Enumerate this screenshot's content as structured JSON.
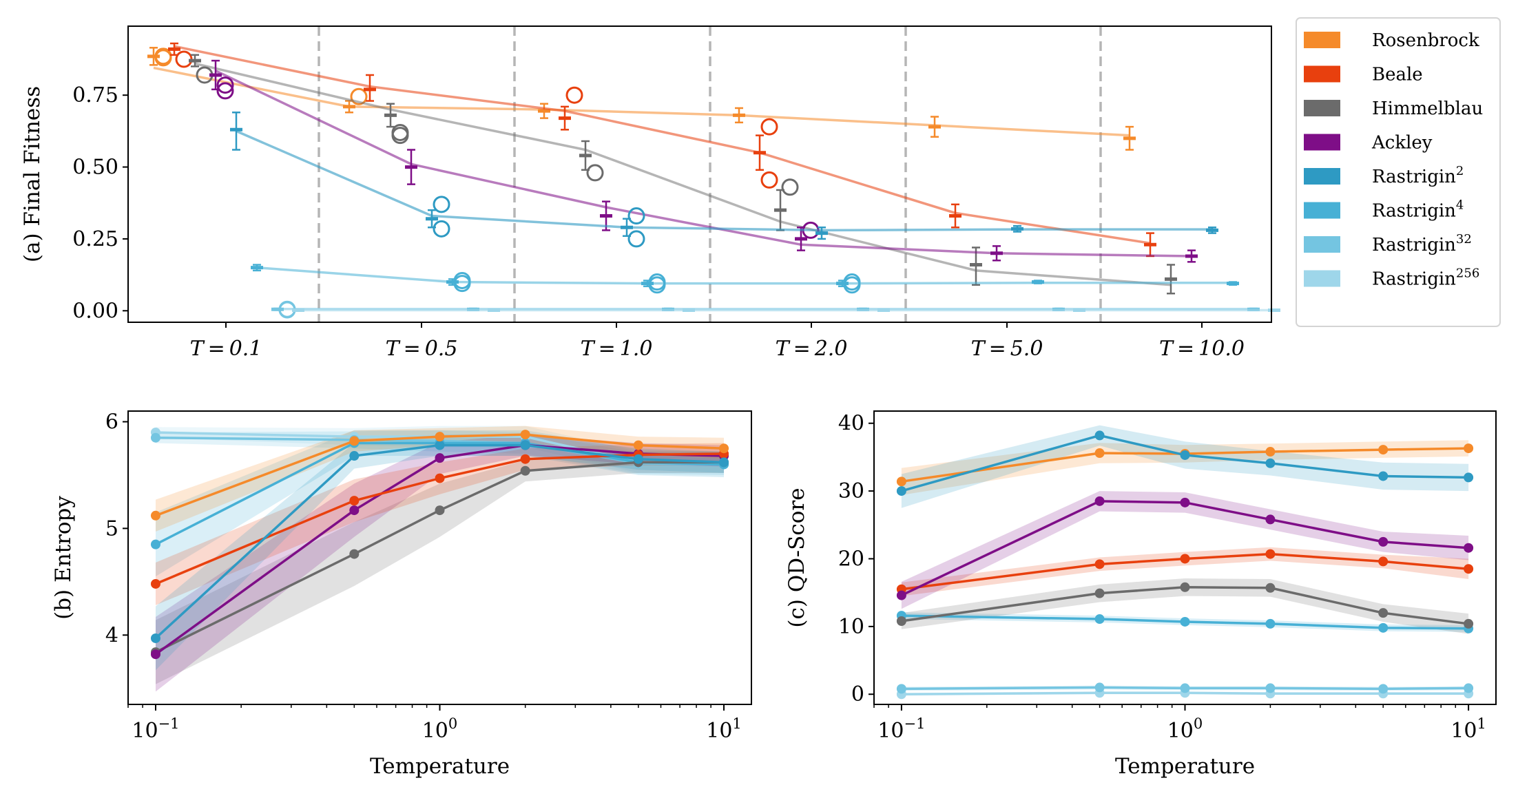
{
  "chart_data": [
    {
      "type": "scatter",
      "panel": "a",
      "ylabel": "(a) Final Fitness",
      "categories": [
        "T = 0.1",
        "T = 0.5",
        "T = 1.0",
        "T = 2.0",
        "T = 5.0",
        "T = 10.0"
      ],
      "ylim": [
        -0.04,
        0.99
      ],
      "yticks": [
        "0.00",
        "0.25",
        "0.50",
        "0.75"
      ],
      "grid": false,
      "legend_position": "outside-right",
      "series": [
        {
          "name": "Rosenbrock",
          "label": "Rosenbrock",
          "sup": "",
          "color": "#F58A2A",
          "line_alpha": 0.55,
          "means": [
            0.885,
            0.71,
            0.695,
            0.68,
            0.64,
            0.6
          ],
          "err_low": [
            0.03,
            0.02,
            0.025,
            0.025,
            0.035,
            0.04
          ],
          "err_high": [
            0.03,
            0.02,
            0.025,
            0.025,
            0.035,
            0.04
          ],
          "circles": [
            [
              0.885,
              0.88,
              0.885
            ],
            [
              0.745
            ],
            [],
            [],
            [],
            []
          ],
          "line": [
            0.845,
            0.71,
            0.7,
            0.68,
            0.645,
            0.61
          ]
        },
        {
          "name": "Beale",
          "label": "Beale",
          "sup": "",
          "color": "#E8400E",
          "line_alpha": 0.55,
          "means": [
            0.91,
            0.77,
            0.67,
            0.55,
            0.33,
            0.23
          ],
          "err_low": [
            0.02,
            0.04,
            0.04,
            0.06,
            0.04,
            0.04
          ],
          "err_high": [
            0.02,
            0.05,
            0.04,
            0.06,
            0.04,
            0.04
          ],
          "circles": [
            [
              0.875
            ],
            [],
            [
              0.75
            ],
            [
              0.64,
              0.455
            ],
            [],
            []
          ],
          "line": [
            0.92,
            0.78,
            0.695,
            0.55,
            0.34,
            0.235
          ]
        },
        {
          "name": "Himmelblau",
          "label": "Himmelblau",
          "sup": "",
          "color": "#6B6B6B",
          "line_alpha": 0.5,
          "means": [
            0.87,
            0.68,
            0.54,
            0.35,
            0.16,
            0.11
          ],
          "err_low": [
            0.02,
            0.04,
            0.05,
            0.07,
            0.07,
            0.05
          ],
          "err_high": [
            0.02,
            0.04,
            0.05,
            0.07,
            0.06,
            0.05
          ],
          "circles": [
            [
              0.82
            ],
            [
              0.62,
              0.61
            ],
            [
              0.48
            ],
            [
              0.43
            ],
            [],
            []
          ],
          "line": [
            0.86,
            0.7,
            0.56,
            0.31,
            0.14,
            0.09
          ]
        },
        {
          "name": "Ackley",
          "label": "Ackley",
          "sup": "",
          "color": "#7E0E87",
          "line_alpha": 0.55,
          "means": [
            0.82,
            0.5,
            0.33,
            0.25,
            0.2,
            0.19
          ],
          "err_low": [
            0.05,
            0.06,
            0.05,
            0.04,
            0.025,
            0.02
          ],
          "err_high": [
            0.05,
            0.06,
            0.05,
            0.04,
            0.025,
            0.02
          ],
          "circles": [
            [
              0.785,
              0.765
            ],
            [],
            [],
            [
              0.28
            ],
            [],
            []
          ],
          "line": [
            0.835,
            0.51,
            0.36,
            0.23,
            0.2,
            0.19
          ]
        },
        {
          "name": "Rastrigin^2",
          "label": "Rastrigin",
          "sup": "2",
          "color": "#2E9AC3",
          "line_alpha": 0.6,
          "means": [
            0.63,
            0.32,
            0.29,
            0.27,
            0.285,
            0.28
          ],
          "err_low": [
            0.07,
            0.03,
            0.03,
            0.02,
            0.01,
            0.01
          ],
          "err_high": [
            0.06,
            0.03,
            0.03,
            0.02,
            0.01,
            0.01
          ],
          "circles": [
            [],
            [
              0.37,
              0.285
            ],
            [
              0.33,
              0.25
            ],
            [],
            [],
            []
          ],
          "line": [
            0.625,
            0.33,
            0.29,
            0.28,
            0.283,
            0.283
          ]
        },
        {
          "name": "Rastrigin^4",
          "label": "Rastrigin",
          "sup": "4",
          "color": "#47B0D5",
          "line_alpha": 0.55,
          "means": [
            0.15,
            0.1,
            0.095,
            0.095,
            0.1,
            0.095
          ],
          "err_low": [
            0.01,
            0.01,
            0.01,
            0.01,
            0.005,
            0.005
          ],
          "err_high": [
            0.01,
            0.01,
            0.01,
            0.01,
            0.005,
            0.005
          ],
          "circles": [
            [],
            [
              0.105,
              0.095
            ],
            [
              0.1,
              0.09
            ],
            [
              0.1,
              0.09
            ],
            [],
            []
          ],
          "line": [
            0.15,
            0.1,
            0.095,
            0.095,
            0.097,
            0.097
          ]
        },
        {
          "name": "Rastrigin^32",
          "label": "Rastrigin",
          "sup": "32",
          "color": "#74C5E1",
          "line_alpha": 0.55,
          "means": [
            0.005,
            0.005,
            0.005,
            0.005,
            0.005,
            0.005
          ],
          "err_low": [
            0.003,
            0.003,
            0.003,
            0.003,
            0.003,
            0.003
          ],
          "err_high": [
            0.003,
            0.003,
            0.003,
            0.003,
            0.003,
            0.003
          ],
          "circles": [
            [
              0.005,
              0.003
            ],
            [],
            [],
            [],
            [],
            []
          ],
          "line": [
            0.006,
            0.006,
            0.006,
            0.006,
            0.006,
            0.006
          ]
        },
        {
          "name": "Rastrigin^256",
          "label": "Rastrigin",
          "sup": "256",
          "color": "#9ED6EA",
          "line_alpha": 0.55,
          "means": [
            0.002,
            0.002,
            0.002,
            0.002,
            0.002,
            0.002
          ],
          "err_low": [
            0.002,
            0.002,
            0.002,
            0.002,
            0.002,
            0.002
          ],
          "err_high": [
            0.002,
            0.002,
            0.002,
            0.002,
            0.002,
            0.002
          ],
          "circles": [
            [],
            [],
            [],
            [],
            [],
            []
          ],
          "line": [
            0.002,
            0.002,
            0.002,
            0.002,
            0.002,
            0.002
          ]
        }
      ]
    },
    {
      "type": "line",
      "panel": "b",
      "ylabel": "(b) Entropy",
      "xlabel": "Temperature",
      "x": [
        0.1,
        0.5,
        1,
        2,
        5,
        10
      ],
      "x_scale": "log",
      "xlim": [
        0.08,
        12.5
      ],
      "ylim": [
        3.35,
        6.1
      ],
      "yticks": [
        4,
        5,
        6
      ],
      "xticks": [
        {
          "base": "10",
          "exp": "−1"
        },
        {
          "base": "10",
          "exp": "0"
        },
        {
          "base": "10",
          "exp": "1"
        }
      ],
      "band_alpha": 0.2,
      "series": [
        {
          "name": "Rastrigin^256",
          "color": "#9ED6EA",
          "values": [
            5.9,
            5.86,
            5.86,
            5.86,
            5.62,
            5.62
          ],
          "band": [
            0.05,
            0.08,
            0.1,
            0.1,
            0.1,
            0.1
          ]
        },
        {
          "name": "Rastrigin^32",
          "color": "#74C5E1",
          "values": [
            5.85,
            5.83,
            5.82,
            5.8,
            5.61,
            5.6
          ],
          "band": [
            0.05,
            0.08,
            0.1,
            0.1,
            0.1,
            0.1
          ]
        },
        {
          "name": "Rastrigin^4",
          "color": "#47B0D5",
          "values": [
            4.85,
            5.8,
            5.8,
            5.8,
            5.62,
            5.6
          ],
          "band": [
            0.3,
            0.12,
            0.12,
            0.12,
            0.12,
            0.12
          ]
        },
        {
          "name": "Himmelblau",
          "color": "#6B6B6B",
          "values": [
            3.84,
            4.76,
            5.17,
            5.54,
            5.62,
            5.62
          ],
          "band": [
            0.3,
            0.3,
            0.25,
            0.1,
            0.1,
            0.1
          ]
        },
        {
          "name": "Ackley",
          "color": "#7E0E87",
          "values": [
            3.82,
            5.17,
            5.66,
            5.78,
            5.7,
            5.68
          ],
          "band": [
            0.35,
            0.25,
            0.15,
            0.1,
            0.1,
            0.1
          ]
        },
        {
          "name": "Beale",
          "color": "#E8400E",
          "values": [
            4.48,
            5.26,
            5.47,
            5.65,
            5.69,
            5.7
          ],
          "band": [
            0.2,
            0.2,
            0.15,
            0.1,
            0.1,
            0.1
          ]
        },
        {
          "name": "Rastrigin^2",
          "color": "#2E9AC3",
          "values": [
            3.97,
            5.68,
            5.78,
            5.78,
            5.65,
            5.62
          ],
          "band": [
            0.3,
            0.12,
            0.1,
            0.1,
            0.1,
            0.1
          ]
        },
        {
          "name": "Rosenbrock",
          "color": "#F58A2A",
          "values": [
            5.12,
            5.82,
            5.86,
            5.88,
            5.78,
            5.75
          ],
          "band": [
            0.15,
            0.1,
            0.08,
            0.08,
            0.08,
            0.1
          ]
        }
      ]
    },
    {
      "type": "line",
      "panel": "c",
      "ylabel": "(c) QD-Score",
      "xlabel": "Temperature",
      "x": [
        0.1,
        0.5,
        1,
        2,
        5,
        10
      ],
      "x_scale": "log",
      "xlim": [
        0.08,
        12.5
      ],
      "ylim": [
        -1.5,
        41.8
      ],
      "yticks": [
        0,
        10,
        20,
        30,
        40
      ],
      "xticks": [
        {
          "base": "10",
          "exp": "−1"
        },
        {
          "base": "10",
          "exp": "0"
        },
        {
          "base": "10",
          "exp": "1"
        }
      ],
      "band_alpha": 0.2,
      "series": [
        {
          "name": "Rastrigin^256",
          "color": "#9ED6EA",
          "values": [
            0.0,
            0.2,
            0.2,
            0.1,
            0.1,
            0.1
          ],
          "band": [
            0.2,
            0.2,
            0.2,
            0.2,
            0.2,
            0.2
          ]
        },
        {
          "name": "Rastrigin^32",
          "color": "#74C5E1",
          "values": [
            0.8,
            1.0,
            0.9,
            0.9,
            0.8,
            0.9
          ],
          "band": [
            0.3,
            0.3,
            0.3,
            0.3,
            0.3,
            0.3
          ]
        },
        {
          "name": "Rastrigin^4",
          "color": "#47B0D5",
          "values": [
            11.6,
            11.1,
            10.7,
            10.4,
            9.8,
            9.7
          ],
          "band": [
            0.5,
            0.5,
            0.5,
            0.5,
            0.5,
            0.5
          ]
        },
        {
          "name": "Himmelblau",
          "color": "#6B6B6B",
          "values": [
            10.8,
            14.9,
            15.8,
            15.7,
            12.0,
            10.4
          ],
          "band": [
            1.2,
            1.3,
            1.3,
            1.3,
            1.3,
            1.5
          ]
        },
        {
          "name": "Beale",
          "color": "#E8400E",
          "values": [
            15.5,
            19.2,
            20.0,
            20.7,
            19.6,
            18.5
          ],
          "band": [
            1.0,
            1.0,
            1.0,
            1.0,
            1.0,
            1.5
          ]
        },
        {
          "name": "Ackley",
          "color": "#7E0E87",
          "values": [
            14.6,
            28.5,
            28.3,
            25.8,
            22.5,
            21.6
          ],
          "band": [
            2.0,
            1.5,
            1.5,
            1.5,
            1.5,
            1.8
          ]
        },
        {
          "name": "Rosenbrock",
          "color": "#F58A2A",
          "values": [
            31.4,
            35.6,
            35.5,
            35.8,
            36.1,
            36.3
          ],
          "band": [
            2.0,
            1.5,
            1.3,
            1.2,
            1.2,
            1.2
          ]
        },
        {
          "name": "Rastrigin^2",
          "color": "#2E9AC3",
          "values": [
            30.0,
            38.2,
            35.3,
            34.1,
            32.2,
            32.0
          ],
          "band": [
            2.5,
            1.5,
            2.0,
            1.8,
            2.0,
            2.0
          ]
        }
      ]
    }
  ]
}
